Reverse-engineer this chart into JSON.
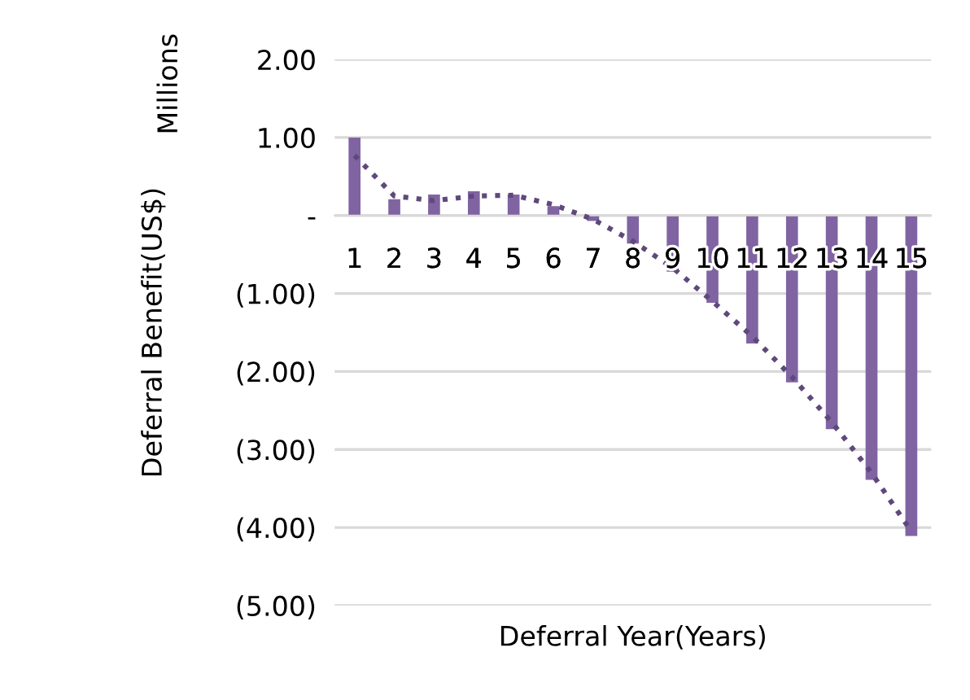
{
  "chart_data": {
    "type": "bar",
    "xlabel": "Deferral Year(Years)",
    "ylabel": "Deferral Benefit(US$)",
    "annotations": [
      "Millions"
    ],
    "categories": [
      "1",
      "2",
      "3",
      "4",
      "5",
      "6",
      "7",
      "8",
      "9",
      "10",
      "11",
      "12",
      "13",
      "14",
      "15"
    ],
    "series": [
      {
        "type": "bar",
        "color": "#8064a2",
        "values": [
          1.0,
          0.21,
          0.27,
          0.31,
          0.27,
          0.12,
          -0.07,
          -0.36,
          -0.72,
          -1.12,
          -1.64,
          -2.14,
          -2.74,
          -3.39,
          -4.11
        ]
      },
      {
        "type": "line",
        "color": "#5f497a",
        "line_style": "dotted",
        "values": [
          0.77,
          0.25,
          0.19,
          0.25,
          0.26,
          0.14,
          -0.05,
          -0.33,
          -0.67,
          -1.1,
          -1.55,
          -2.07,
          -2.65,
          -3.3,
          -4.05
        ]
      }
    ],
    "ylim": [
      -5,
      2
    ],
    "yticks": [
      {
        "value": 2,
        "label": "2.00"
      },
      {
        "value": 1,
        "label": "1.00"
      },
      {
        "value": 0,
        "label": "-"
      },
      {
        "value": -1,
        "label": "(1.00)"
      },
      {
        "value": -2,
        "label": "(2.00)"
      },
      {
        "value": -3,
        "label": "(3.00)"
      },
      {
        "value": -4,
        "label": "(4.00)"
      },
      {
        "value": -5,
        "label": "(5.00)"
      }
    ],
    "grid": "y",
    "legend": false
  }
}
